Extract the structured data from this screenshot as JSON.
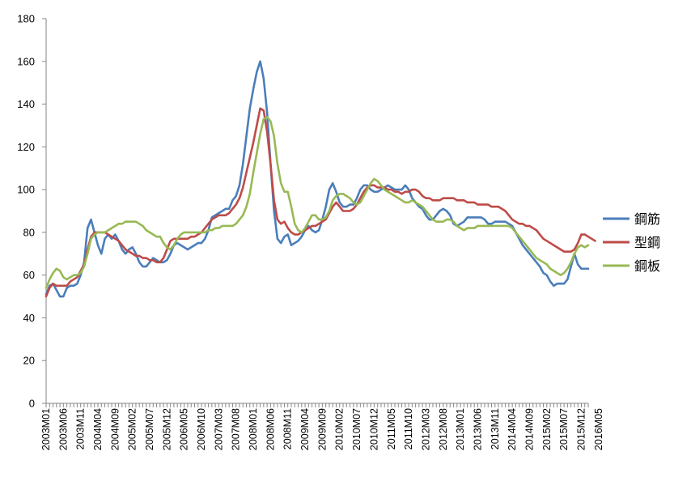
{
  "chart_data": {
    "type": "line",
    "title": "",
    "xlabel": "",
    "ylabel": "",
    "ylim": [
      0,
      180
    ],
    "yticks": [
      0,
      20,
      40,
      60,
      80,
      100,
      120,
      140,
      160,
      180
    ],
    "grid": false,
    "legend_position": "right",
    "x_start": "2003M01",
    "x_tick_labels": [
      "2003M01",
      "2003M06",
      "2003M11",
      "2004M04",
      "2004M09",
      "2005M02",
      "2005M07",
      "2005M12",
      "2006M05",
      "2006M10",
      "2007M03",
      "2007M08",
      "2008M01",
      "2008M06",
      "2008M11",
      "2009M04",
      "2009M09",
      "2010M02",
      "2010M07",
      "2010M12",
      "2011M05",
      "2011M10",
      "2012M03",
      "2012M08",
      "2013M01",
      "2013M06",
      "2013M11",
      "2014M04",
      "2014M09",
      "2015M02",
      "2015M07",
      "2015M12",
      "2016M05"
    ],
    "series": [
      {
        "name": "鋼筋",
        "color": "#4a7ebb",
        "values": [
          51,
          55,
          56,
          53,
          50,
          50,
          54,
          55,
          55,
          56,
          60,
          66,
          82,
          86,
          80,
          74,
          70,
          77,
          79,
          77,
          79,
          76,
          72,
          70,
          72,
          73,
          70,
          66,
          64,
          64,
          66,
          68,
          67,
          66,
          66,
          67,
          70,
          74,
          75,
          74,
          73,
          72,
          73,
          74,
          75,
          75,
          77,
          81,
          87,
          88,
          89,
          90,
          91,
          91,
          95,
          97,
          102,
          112,
          125,
          138,
          147,
          155,
          160,
          152,
          136,
          112,
          90,
          77,
          75,
          78,
          79,
          74,
          75,
          76,
          78,
          81,
          83,
          81,
          80,
          81,
          86,
          92,
          100,
          103,
          99,
          94,
          92,
          92,
          93,
          93,
          96,
          100,
          102,
          102,
          100,
          99,
          99,
          100,
          101,
          102,
          101,
          100,
          100,
          100,
          102,
          100,
          96,
          94,
          92,
          91,
          88,
          86,
          86,
          88,
          90,
          91,
          90,
          88,
          84,
          83,
          84,
          85,
          87,
          87,
          87,
          87,
          87,
          86,
          84,
          84,
          85,
          85,
          85,
          85,
          84,
          83,
          80,
          77,
          74,
          72,
          70,
          68,
          66,
          64,
          61,
          60,
          57,
          55,
          56,
          56,
          56,
          58,
          64,
          70,
          65,
          63,
          63,
          63
        ]
      },
      {
        "name": "型鋼",
        "color": "#be4b48",
        "values": [
          50,
          54,
          56,
          55,
          55,
          55,
          55,
          57,
          58,
          59,
          62,
          65,
          72,
          78,
          80,
          80,
          80,
          80,
          79,
          78,
          77,
          76,
          74,
          72,
          71,
          70,
          69,
          69,
          68,
          68,
          67,
          67,
          66,
          66,
          68,
          72,
          76,
          77,
          77,
          77,
          77,
          77,
          78,
          78,
          79,
          80,
          82,
          84,
          86,
          87,
          88,
          88,
          88,
          89,
          91,
          93,
          96,
          101,
          108,
          115,
          122,
          130,
          138,
          137,
          127,
          112,
          95,
          86,
          84,
          85,
          82,
          80,
          79,
          79,
          80,
          81,
          82,
          83,
          83,
          84,
          85,
          86,
          89,
          92,
          94,
          92,
          90,
          90,
          90,
          91,
          93,
          96,
          99,
          101,
          102,
          102,
          101,
          101,
          101,
          100,
          100,
          99,
          99,
          98,
          99,
          99,
          100,
          100,
          99,
          97,
          96,
          96,
          95,
          95,
          95,
          96,
          96,
          96,
          96,
          95,
          95,
          95,
          94,
          94,
          94,
          93,
          93,
          93,
          93,
          92,
          92,
          92,
          91,
          90,
          88,
          86,
          85,
          84,
          84,
          83,
          83,
          82,
          81,
          79,
          77,
          76,
          75,
          74,
          73,
          72,
          71,
          71,
          71,
          72,
          75,
          79,
          79,
          78,
          77,
          76
        ]
      },
      {
        "name": "鋼板",
        "color": "#98b954",
        "values": [
          54,
          58,
          61,
          63,
          62,
          59,
          58,
          59,
          60,
          60,
          61,
          64,
          70,
          77,
          79,
          80,
          80,
          80,
          81,
          82,
          83,
          84,
          84,
          85,
          85,
          85,
          85,
          84,
          83,
          81,
          80,
          79,
          78,
          78,
          75,
          73,
          72,
          74,
          77,
          79,
          80,
          80,
          80,
          80,
          80,
          80,
          80,
          81,
          81,
          82,
          82,
          83,
          83,
          83,
          83,
          84,
          86,
          88,
          92,
          98,
          108,
          117,
          126,
          133,
          134,
          132,
          125,
          112,
          103,
          99,
          99,
          92,
          84,
          81,
          80,
          82,
          85,
          88,
          88,
          86,
          86,
          87,
          90,
          95,
          97,
          98,
          98,
          97,
          96,
          94,
          93,
          94,
          97,
          100,
          103,
          105,
          104,
          102,
          100,
          99,
          98,
          97,
          96,
          95,
          94,
          94,
          95,
          94,
          93,
          92,
          90,
          88,
          86,
          85,
          85,
          85,
          86,
          86,
          85,
          83,
          82,
          81,
          82,
          82,
          82,
          83,
          83,
          83,
          83,
          83,
          83,
          83,
          83,
          83,
          83,
          82,
          80,
          78,
          76,
          74,
          72,
          70,
          68,
          67,
          66,
          65,
          63,
          62,
          61,
          60,
          61,
          63,
          66,
          70,
          73,
          74,
          73,
          74
        ]
      }
    ]
  }
}
